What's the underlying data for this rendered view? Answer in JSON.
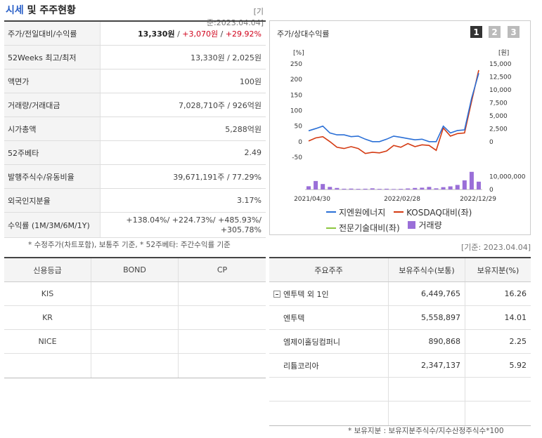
{
  "header": {
    "title_accent": "시세",
    "title_rest": " 및 주주현황",
    "date": "[기준:2023.04.04]"
  },
  "price_table": [
    {
      "label": "주가/전일대비/수익률",
      "price": "13,330원",
      "sep1": " / ",
      "change": "+3,070원",
      "sep2": " / ",
      "rate": "+29.92%"
    },
    {
      "label": "52Weeks 최고/최저",
      "value": "13,330원 / 2,025원"
    },
    {
      "label": "액면가",
      "value": "100원"
    },
    {
      "label": "거래량/거래대금",
      "value": "7,028,710주 / 926억원"
    },
    {
      "label": "시가총액",
      "value": "5,288억원"
    },
    {
      "label": "52주베타",
      "value": "2.49"
    },
    {
      "label": "발행주식수/유동비율",
      "value": "39,671,191주 / 77.29%"
    },
    {
      "label": "외국인지분율",
      "value": "3.17%"
    },
    {
      "label": "수익률 (1M/3M/6M/1Y)",
      "line1": "+138.04%/ +224.73%/ +485.93%/",
      "line2": "+305.78%"
    }
  ],
  "left_note": "* 수정주가(차트포함), 보통주 기준, * 52주베타: 주간수익률 기준",
  "credit": {
    "headers": [
      "신용등급",
      "BOND",
      "CP"
    ],
    "rows": [
      [
        "KIS",
        "",
        ""
      ],
      [
        "KR",
        "",
        ""
      ],
      [
        "NICE",
        "",
        ""
      ],
      [
        "",
        "",
        ""
      ]
    ]
  },
  "chart_panel": {
    "title": "주가/상대수익률",
    "tabs": [
      "1",
      "2",
      "3"
    ]
  },
  "chart_data": {
    "type": "line",
    "x_ticks": [
      "2021/04/30",
      "2022/02/28",
      "2022/12/29"
    ],
    "left_axis": {
      "unit": "[%]",
      "ticks": [
        "250",
        "200",
        "150",
        "100",
        "50",
        "0",
        "-50"
      ],
      "range": [
        -50,
        250
      ]
    },
    "right_axis": {
      "unit": "[원]",
      "ticks": [
        "15,000",
        "12,500",
        "10,000",
        "7,500",
        "5,000",
        "2,500",
        "0"
      ],
      "range": [
        0,
        15000
      ]
    },
    "volume_axis": {
      "ticks": [
        "10,000,000",
        "0"
      ],
      "range": [
        0,
        15000000
      ]
    },
    "series": [
      {
        "name": "지엔원에너지",
        "color": "#2a6fd6",
        "values": [
          35,
          42,
          50,
          28,
          22,
          22,
          16,
          18,
          8,
          0,
          0,
          8,
          18,
          14,
          10,
          6,
          8,
          0,
          0,
          50,
          28,
          36,
          38,
          140,
          220
        ]
      },
      {
        "name": "KOSDAQ대비(좌)",
        "color": "#d43a12",
        "values": [
          2,
          12,
          16,
          0,
          -18,
          -22,
          -16,
          -22,
          -38,
          -34,
          -36,
          -30,
          -12,
          -18,
          -6,
          -16,
          -10,
          -12,
          -28,
          44,
          18,
          26,
          28,
          130,
          230
        ]
      },
      {
        "name": "전문기술대비(좌)",
        "color": "#8cc63f",
        "values": []
      },
      {
        "name": "거래량",
        "color": "#9a6fd8",
        "values": [
          2500000,
          6500000,
          4200000,
          2000000,
          1200000,
          600000,
          700000,
          500000,
          600000,
          900000,
          500000,
          600000,
          400000,
          500000,
          800000,
          1200000,
          1400000,
          2000000,
          900000,
          1800000,
          2400000,
          3500000,
          7000000,
          13500000,
          6000000
        ]
      }
    ]
  },
  "holders": {
    "date": "[기준: 2023.04.04]",
    "headers": [
      "주요주주",
      "보유주식수(보통)",
      "보유지분(%)"
    ],
    "rows": [
      {
        "name": "엔투텍 외 1인",
        "shares": "6,449,765",
        "pct": "16.26",
        "group": true
      },
      {
        "name": "엔투텍",
        "shares": "5,558,897",
        "pct": "14.01",
        "group": false
      },
      {
        "name": "엠제이홀딩컴퍼니",
        "shares": "890,868",
        "pct": "2.25",
        "group": false
      },
      {
        "name": "리튬코리아",
        "shares": "2,347,137",
        "pct": "5.92",
        "group": false
      },
      {
        "name": "",
        "shares": "",
        "pct": "",
        "group": false
      },
      {
        "name": "",
        "shares": "",
        "pct": "",
        "group": false
      }
    ],
    "note": "* 보유지분 : 보유지분주식수/지수산정주식수*100"
  }
}
